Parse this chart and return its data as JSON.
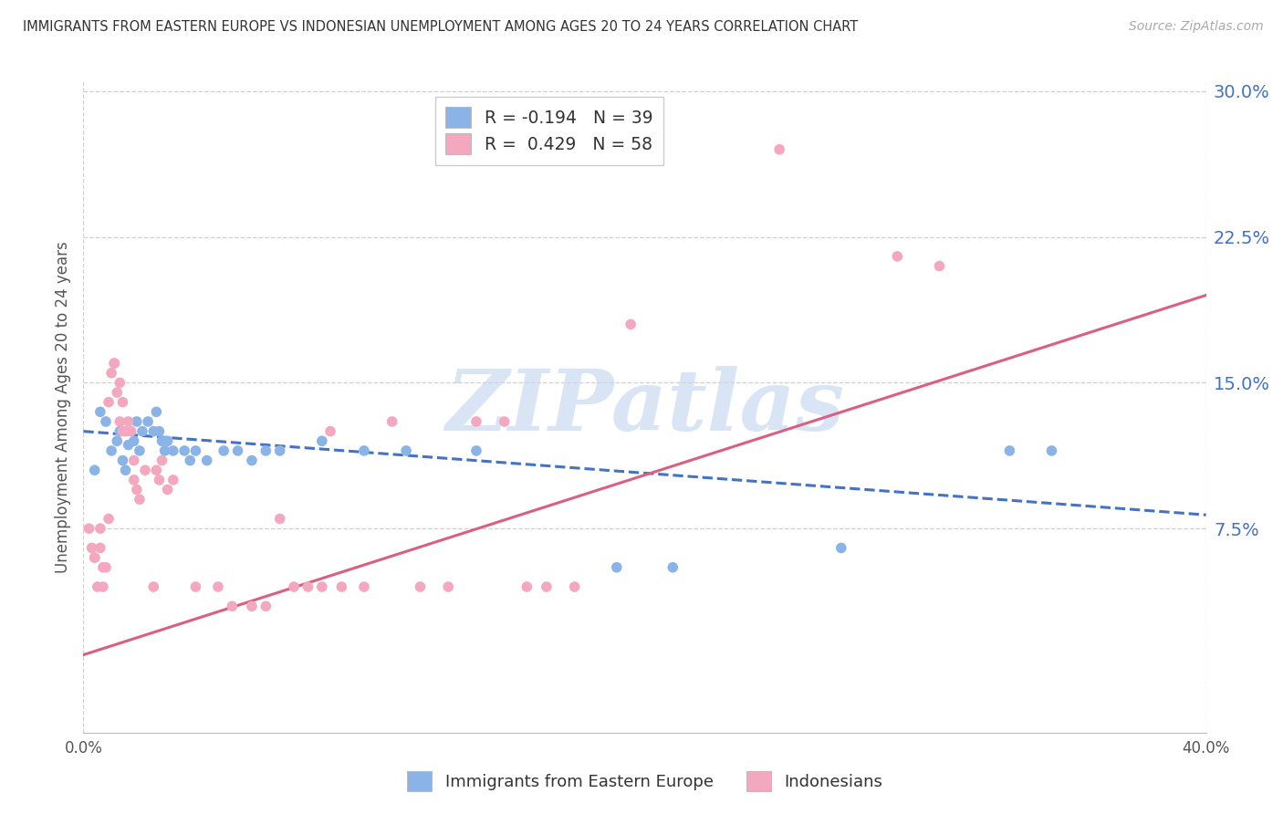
{
  "title": "IMMIGRANTS FROM EASTERN EUROPE VS INDONESIAN UNEMPLOYMENT AMONG AGES 20 TO 24 YEARS CORRELATION CHART",
  "source": "Source: ZipAtlas.com",
  "ylabel": "Unemployment Among Ages 20 to 24 years",
  "x_min": 0.0,
  "x_max": 0.4,
  "y_min": -0.03,
  "y_max": 0.305,
  "yticks": [
    0.075,
    0.15,
    0.225,
    0.3
  ],
  "ytick_labels": [
    "7.5%",
    "15.0%",
    "22.5%",
    "30.0%"
  ],
  "legend_blue_R": "-0.194",
  "legend_blue_N": "39",
  "legend_pink_R": "0.429",
  "legend_pink_N": "58",
  "legend_label_blue": "Immigrants from Eastern Europe",
  "legend_label_pink": "Indonesians",
  "blue_color": "#8ab4e8",
  "pink_color": "#f4a8bf",
  "blue_line_color": "#4472c4",
  "pink_line_color": "#d96080",
  "blue_trend_x0": 0.0,
  "blue_trend_y0": 0.125,
  "blue_trend_x1": 0.4,
  "blue_trend_y1": 0.082,
  "pink_trend_x0": 0.0,
  "pink_trend_y0": 0.01,
  "pink_trend_x1": 0.4,
  "pink_trend_y1": 0.195,
  "blue_dots": [
    [
      0.004,
      0.105
    ],
    [
      0.006,
      0.135
    ],
    [
      0.008,
      0.13
    ],
    [
      0.01,
      0.115
    ],
    [
      0.012,
      0.12
    ],
    [
      0.013,
      0.125
    ],
    [
      0.014,
      0.11
    ],
    [
      0.015,
      0.105
    ],
    [
      0.016,
      0.118
    ],
    [
      0.018,
      0.12
    ],
    [
      0.019,
      0.13
    ],
    [
      0.02,
      0.115
    ],
    [
      0.021,
      0.125
    ],
    [
      0.023,
      0.13
    ],
    [
      0.025,
      0.125
    ],
    [
      0.026,
      0.135
    ],
    [
      0.027,
      0.125
    ],
    [
      0.028,
      0.12
    ],
    [
      0.029,
      0.115
    ],
    [
      0.03,
      0.12
    ],
    [
      0.032,
      0.115
    ],
    [
      0.036,
      0.115
    ],
    [
      0.038,
      0.11
    ],
    [
      0.04,
      0.115
    ],
    [
      0.044,
      0.11
    ],
    [
      0.05,
      0.115
    ],
    [
      0.055,
      0.115
    ],
    [
      0.06,
      0.11
    ],
    [
      0.065,
      0.115
    ],
    [
      0.07,
      0.115
    ],
    [
      0.085,
      0.12
    ],
    [
      0.1,
      0.115
    ],
    [
      0.115,
      0.115
    ],
    [
      0.14,
      0.115
    ],
    [
      0.19,
      0.055
    ],
    [
      0.21,
      0.055
    ],
    [
      0.27,
      0.065
    ],
    [
      0.33,
      0.115
    ],
    [
      0.345,
      0.115
    ]
  ],
  "pink_dots": [
    [
      0.002,
      0.075
    ],
    [
      0.003,
      0.065
    ],
    [
      0.004,
      0.06
    ],
    [
      0.004,
      0.06
    ],
    [
      0.005,
      0.045
    ],
    [
      0.006,
      0.065
    ],
    [
      0.006,
      0.075
    ],
    [
      0.007,
      0.055
    ],
    [
      0.007,
      0.045
    ],
    [
      0.008,
      0.055
    ],
    [
      0.009,
      0.08
    ],
    [
      0.009,
      0.14
    ],
    [
      0.01,
      0.155
    ],
    [
      0.011,
      0.16
    ],
    [
      0.011,
      0.16
    ],
    [
      0.012,
      0.145
    ],
    [
      0.013,
      0.15
    ],
    [
      0.013,
      0.13
    ],
    [
      0.014,
      0.125
    ],
    [
      0.014,
      0.14
    ],
    [
      0.015,
      0.125
    ],
    [
      0.016,
      0.13
    ],
    [
      0.017,
      0.125
    ],
    [
      0.018,
      0.1
    ],
    [
      0.018,
      0.11
    ],
    [
      0.019,
      0.095
    ],
    [
      0.02,
      0.09
    ],
    [
      0.022,
      0.105
    ],
    [
      0.025,
      0.045
    ],
    [
      0.026,
      0.105
    ],
    [
      0.027,
      0.1
    ],
    [
      0.028,
      0.11
    ],
    [
      0.03,
      0.095
    ],
    [
      0.032,
      0.1
    ],
    [
      0.04,
      0.045
    ],
    [
      0.048,
      0.045
    ],
    [
      0.053,
      0.035
    ],
    [
      0.06,
      0.035
    ],
    [
      0.065,
      0.035
    ],
    [
      0.07,
      0.08
    ],
    [
      0.075,
      0.045
    ],
    [
      0.08,
      0.045
    ],
    [
      0.085,
      0.045
    ],
    [
      0.088,
      0.125
    ],
    [
      0.092,
      0.045
    ],
    [
      0.1,
      0.045
    ],
    [
      0.11,
      0.13
    ],
    [
      0.12,
      0.045
    ],
    [
      0.13,
      0.045
    ],
    [
      0.14,
      0.13
    ],
    [
      0.15,
      0.13
    ],
    [
      0.158,
      0.045
    ],
    [
      0.165,
      0.045
    ],
    [
      0.175,
      0.045
    ],
    [
      0.195,
      0.18
    ],
    [
      0.248,
      0.27
    ],
    [
      0.29,
      0.215
    ],
    [
      0.305,
      0.21
    ]
  ],
  "watermark_text": "ZIPatlas",
  "watermark_color": "#c5d8ef",
  "grid_color": "#d0d0d0"
}
